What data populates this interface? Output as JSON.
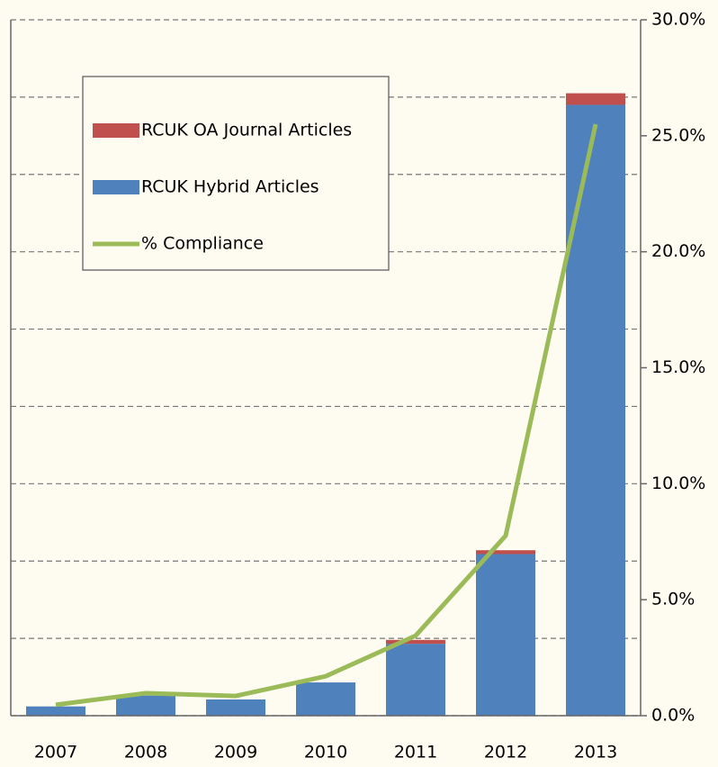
{
  "chart_data": {
    "type": "bar_line",
    "categories": [
      "2007",
      "2008",
      "2009",
      "2010",
      "2011",
      "2012",
      "2013"
    ],
    "series": [
      {
        "name": "RCUK Hybrid Articles",
        "color": "#4f81bd",
        "type": "bar",
        "values": [
          0.12,
          0.26,
          0.21,
          0.43,
          0.93,
          2.09,
          7.9
        ]
      },
      {
        "name": "RCUK OA Journal Articles",
        "color": "#c0504d",
        "type": "bar",
        "values": [
          0,
          0,
          0,
          0,
          0.05,
          0.05,
          0.15
        ]
      },
      {
        "name": "% Compliance",
        "color": "#9bbb59",
        "type": "line",
        "axis": "y2",
        "values": [
          0.47,
          0.97,
          0.85,
          1.7,
          3.45,
          7.76,
          25.5
        ]
      }
    ],
    "ylim": [
      0,
      9
    ],
    "yticks": [
      0,
      1,
      2,
      3,
      4,
      5,
      6,
      7,
      8,
      9
    ],
    "y2lim": [
      0,
      30
    ],
    "y2ticks": [
      {
        "value": 0,
        "label": "0.0%"
      },
      {
        "value": 5,
        "label": "5.0%"
      },
      {
        "value": 10,
        "label": "10.0%"
      },
      {
        "value": 15,
        "label": "15.0%"
      },
      {
        "value": 20,
        "label": "20.0%"
      },
      {
        "value": 25,
        "label": "25.0%"
      },
      {
        "value": 30,
        "label": "30.0%"
      }
    ],
    "grid": true
  }
}
